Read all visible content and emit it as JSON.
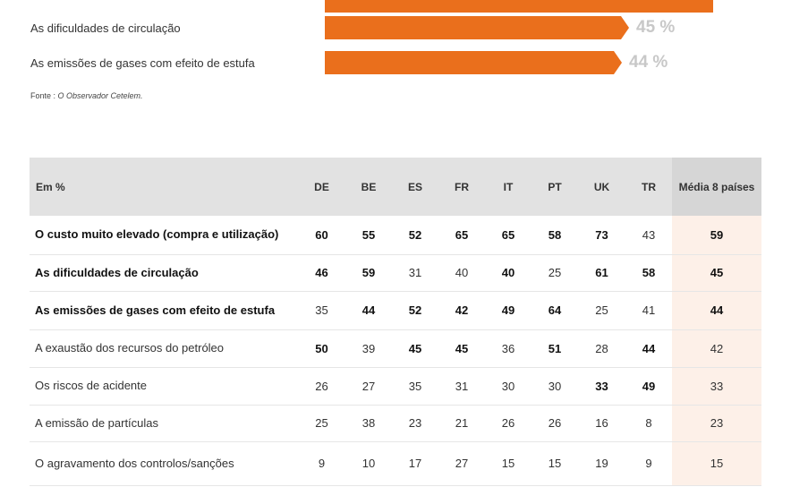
{
  "bar_chart": {
    "source_prefix": "Fonte : ",
    "source_name": "O Observador Cetelem."
  },
  "chart_data": [
    {
      "type": "bar",
      "orientation": "horizontal",
      "categories": [
        "",
        "As dificuldades de circulação",
        "As emissões de gases com efeito de estufa"
      ],
      "values": [
        59,
        45,
        44
      ],
      "value_labels": [
        "",
        "45 %",
        "44 %"
      ],
      "units": "%",
      "color": "#ea6f1c"
    },
    {
      "type": "table",
      "header_label": "Em %",
      "columns": [
        "DE",
        "BE",
        "ES",
        "FR",
        "IT",
        "PT",
        "UK",
        "TR",
        "Média 8 países"
      ],
      "rows": [
        {
          "label": "O custo muito elevado (compra e utilização)",
          "bold": true,
          "values": [
            "60",
            "55",
            "52",
            "65",
            "65",
            "58",
            "73",
            "43",
            "59"
          ],
          "emphasis": [
            true,
            true,
            true,
            true,
            true,
            true,
            true,
            false,
            true
          ]
        },
        {
          "label": "As dificuldades de circulação",
          "bold": true,
          "values": [
            "46",
            "59",
            "31",
            "40",
            "40",
            "25",
            "61",
            "58",
            "45"
          ],
          "emphasis": [
            true,
            true,
            false,
            false,
            true,
            false,
            true,
            true,
            true
          ]
        },
        {
          "label": "As emissões de gases com efeito de estufa",
          "bold": true,
          "values": [
            "35",
            "44",
            "52",
            "42",
            "49",
            "64",
            "25",
            "41",
            "44"
          ],
          "emphasis": [
            false,
            true,
            true,
            true,
            true,
            true,
            false,
            false,
            true
          ]
        },
        {
          "label": "A exaustão dos recursos do petróleo",
          "bold": false,
          "values": [
            "50",
            "39",
            "45",
            "45",
            "36",
            "51",
            "28",
            "44",
            "42"
          ],
          "emphasis": [
            true,
            false,
            true,
            true,
            false,
            true,
            false,
            true,
            false
          ]
        },
        {
          "label": "Os riscos de acidente",
          "bold": false,
          "values": [
            "26",
            "27",
            "35",
            "31",
            "30",
            "30",
            "33",
            "49",
            "33"
          ],
          "emphasis": [
            false,
            false,
            false,
            false,
            false,
            false,
            true,
            true,
            false
          ]
        },
        {
          "label": "A emissão de partículas",
          "bold": false,
          "values": [
            "25",
            "38",
            "23",
            "21",
            "26",
            "26",
            "16",
            "8",
            "23"
          ],
          "emphasis": [
            false,
            false,
            false,
            false,
            false,
            false,
            false,
            false,
            false
          ]
        },
        {
          "label": "O agravamento dos controlos/sanções",
          "bold": false,
          "values": [
            "9",
            "10",
            "17",
            "27",
            "15",
            "15",
            "19",
            "9",
            "15"
          ],
          "emphasis": [
            false,
            false,
            false,
            false,
            false,
            false,
            false,
            false,
            false
          ]
        }
      ]
    }
  ]
}
